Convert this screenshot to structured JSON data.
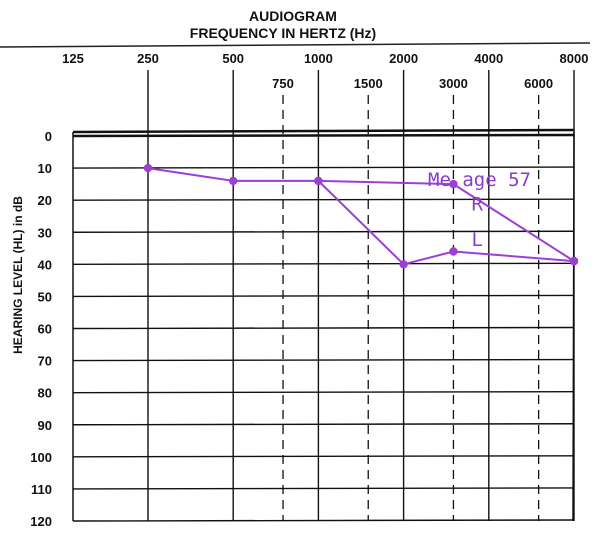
{
  "chart_data": {
    "type": "line",
    "title": "AUDIOGRAM",
    "subtitle": "FREQUENCY IN HERTZ (Hz)",
    "ylabel": "HEARING LEVEL (HL) in dB",
    "ylim": [
      0,
      120
    ],
    "y_ticks": [
      "0",
      "10",
      "20",
      "30",
      "40",
      "50",
      "60",
      "70",
      "80",
      "90",
      "100",
      "110",
      "120"
    ],
    "x_ticks_main": [
      "125",
      "250",
      "500",
      "1000",
      "2000",
      "4000",
      "8000"
    ],
    "x_ticks_inter": [
      "750",
      "1500",
      "3000",
      "6000"
    ],
    "grid": true,
    "line_color": "#9b3fd6",
    "series": [
      {
        "name": "R",
        "x": [
          250,
          500,
          1000,
          3000,
          8000
        ],
        "y": [
          10,
          14,
          14,
          15,
          39
        ]
      },
      {
        "name": "L",
        "x": [
          1000,
          2000,
          3000,
          8000
        ],
        "y": [
          14,
          40,
          36,
          39
        ]
      }
    ],
    "annotation": "Me age 57"
  }
}
